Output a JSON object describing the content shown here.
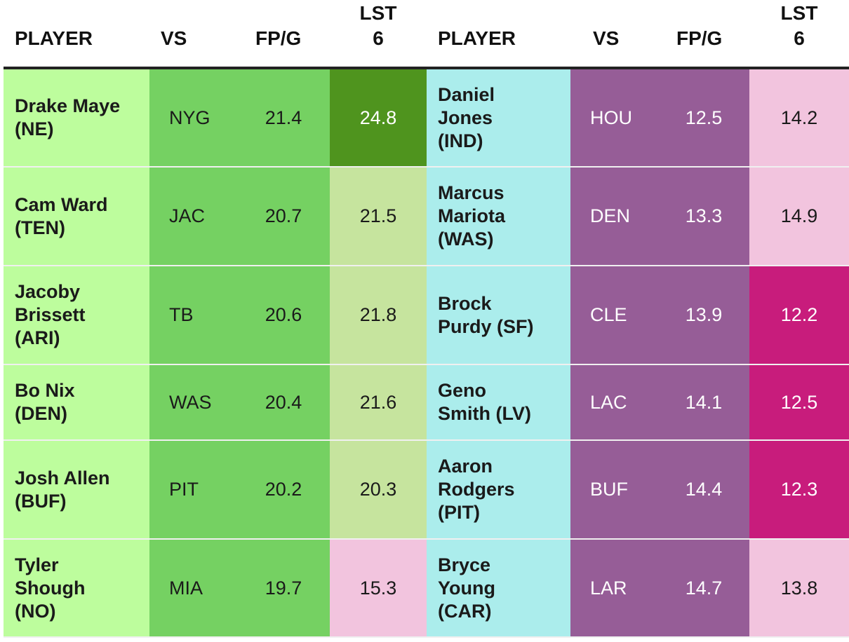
{
  "headers": {
    "player": "PLAYER",
    "vs": "VS",
    "fpg": "FP/G",
    "lst_line1": "LST",
    "lst_line2": "6"
  },
  "left_rows": [
    {
      "name_line1": "Drake Maye",
      "name_line2": "(NE)",
      "name_line3": "",
      "vs": "NYG",
      "fpg": "21.4",
      "lst6": "24.8",
      "lst6_tier": "dgreen"
    },
    {
      "name_line1": "Cam Ward",
      "name_line2": "(TEN)",
      "name_line3": "",
      "vs": "JAC",
      "fpg": "20.7",
      "lst6": "21.5",
      "lst6_tier": "pgreen"
    },
    {
      "name_line1": "Jacoby",
      "name_line2": "Brissett",
      "name_line3": "(ARI)",
      "vs": "TB",
      "fpg": "20.6",
      "lst6": "21.8",
      "lst6_tier": "pgreen"
    },
    {
      "name_line1": "Bo Nix",
      "name_line2": "(DEN)",
      "name_line3": "",
      "vs": "WAS",
      "fpg": "20.4",
      "lst6": "21.6",
      "lst6_tier": "pgreen"
    },
    {
      "name_line1": "Josh Allen",
      "name_line2": "(BUF)",
      "name_line3": "",
      "vs": "PIT",
      "fpg": "20.2",
      "lst6": "20.3",
      "lst6_tier": "pgreen"
    },
    {
      "name_line1": "Tyler",
      "name_line2": "Shough",
      "name_line3": "(NO)",
      "vs": "MIA",
      "fpg": "19.7",
      "lst6": "15.3",
      "lst6_tier": "pink"
    }
  ],
  "right_rows": [
    {
      "name_line1": "Daniel",
      "name_line2": "Jones",
      "name_line3": "(IND)",
      "vs": "HOU",
      "fpg": "12.5",
      "lst6": "14.2",
      "lst6_tier": "pink"
    },
    {
      "name_line1": "Marcus",
      "name_line2": "Mariota",
      "name_line3": "(WAS)",
      "vs": "DEN",
      "fpg": "13.3",
      "lst6": "14.9",
      "lst6_tier": "pink"
    },
    {
      "name_line1": "Brock",
      "name_line2": "Purdy (SF)",
      "name_line3": "",
      "vs": "CLE",
      "fpg": "13.9",
      "lst6": "12.2",
      "lst6_tier": "magenta"
    },
    {
      "name_line1": "Geno",
      "name_line2": "Smith (LV)",
      "name_line3": "",
      "vs": "LAC",
      "fpg": "14.1",
      "lst6": "12.5",
      "lst6_tier": "magenta"
    },
    {
      "name_line1": "Aaron",
      "name_line2": "Rodgers",
      "name_line3": "(PIT)",
      "vs": "BUF",
      "fpg": "14.4",
      "lst6": "12.3",
      "lst6_tier": "magenta"
    },
    {
      "name_line1": "Bryce",
      "name_line2": "Young",
      "name_line3": "(CAR)",
      "vs": "LAR",
      "fpg": "14.7",
      "lst6": "13.8",
      "lst6_tier": "pink"
    }
  ],
  "colors": {
    "left_name_bg": "#bdfd9d",
    "left_stat_bg": "#75d162",
    "right_name_bg": "#abedec",
    "right_stat_bg": "#965d97",
    "tier_dgreen": "#4f941e",
    "tier_pgreen": "#c6e49e",
    "tier_pink": "#f2c4de",
    "tier_magenta": "#c81c7c"
  }
}
